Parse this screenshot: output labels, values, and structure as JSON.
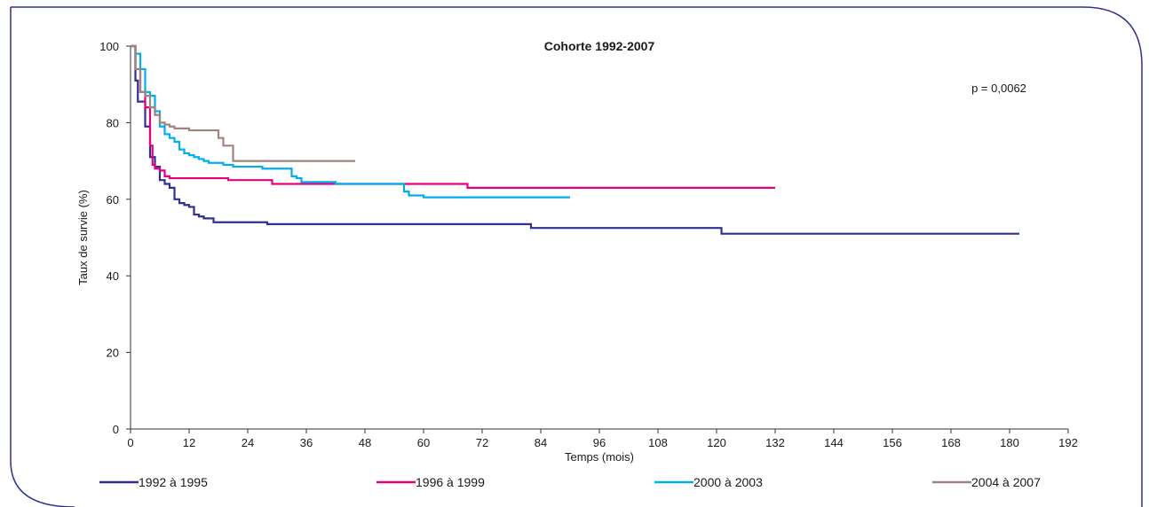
{
  "chart_data": {
    "type": "line",
    "title": "Cohorte 1992-2007",
    "annotation": "p = 0,0062",
    "xlabel": "Temps (mois)",
    "ylabel": "Taux de survie (%)",
    "xlim": [
      0,
      192
    ],
    "ylim": [
      0,
      100
    ],
    "xticks": [
      "0",
      "12",
      "24",
      "36",
      "48",
      "60",
      "72",
      "84",
      "96",
      "108",
      "120",
      "132",
      "144",
      "156",
      "168",
      "180",
      "192"
    ],
    "yticks": [
      "0",
      "20",
      "40",
      "60",
      "80",
      "100"
    ],
    "grid": false,
    "legend_position": "bottom",
    "series": [
      {
        "name": "1992 à 1995",
        "color": "#2e3192",
        "x": [
          0,
          1,
          1.5,
          2,
          3,
          4,
          5,
          6,
          7,
          8,
          9,
          10,
          11,
          12,
          13,
          14,
          15,
          17,
          28,
          82,
          121,
          182
        ],
        "y": [
          100,
          91,
          85.5,
          85.5,
          79,
          71,
          68.5,
          65,
          64,
          63,
          60,
          59,
          58.5,
          58,
          56,
          55.5,
          55,
          54,
          53.5,
          52.5,
          51,
          51
        ]
      },
      {
        "name": "1996 à 1999",
        "color": "#e6007e",
        "x": [
          0,
          1,
          2,
          3,
          4,
          4.5,
          5,
          6,
          7,
          8,
          20,
          29,
          69,
          132
        ],
        "y": [
          100,
          94,
          88,
          84,
          74,
          69,
          68,
          67.5,
          66,
          65.5,
          65,
          64,
          63,
          63
        ]
      },
      {
        "name": "2000 à 2003",
        "color": "#00aeef",
        "x": [
          0,
          1,
          2,
          3,
          4,
          5,
          6,
          7,
          8,
          9,
          10,
          11,
          12,
          13,
          14,
          15,
          16,
          19,
          21,
          27,
          33,
          34,
          35,
          42,
          56,
          57,
          60,
          90
        ],
        "y": [
          100,
          98,
          94,
          88,
          87,
          83,
          79,
          77,
          76,
          75,
          73,
          72,
          71.5,
          71,
          70.5,
          70,
          69.5,
          69,
          68.5,
          68,
          66,
          65.5,
          64.5,
          64,
          62,
          61,
          60.5,
          60.5
        ]
      },
      {
        "name": "2004 à 2007",
        "color": "#a0847e",
        "x": [
          0,
          1,
          2,
          3,
          4,
          5,
          6,
          7,
          8,
          9,
          10,
          12,
          18,
          19,
          21,
          46
        ],
        "y": [
          100,
          94,
          88,
          87,
          84,
          82,
          80,
          79.5,
          79,
          78.5,
          78.5,
          78,
          76,
          74,
          70,
          70
        ]
      }
    ]
  }
}
